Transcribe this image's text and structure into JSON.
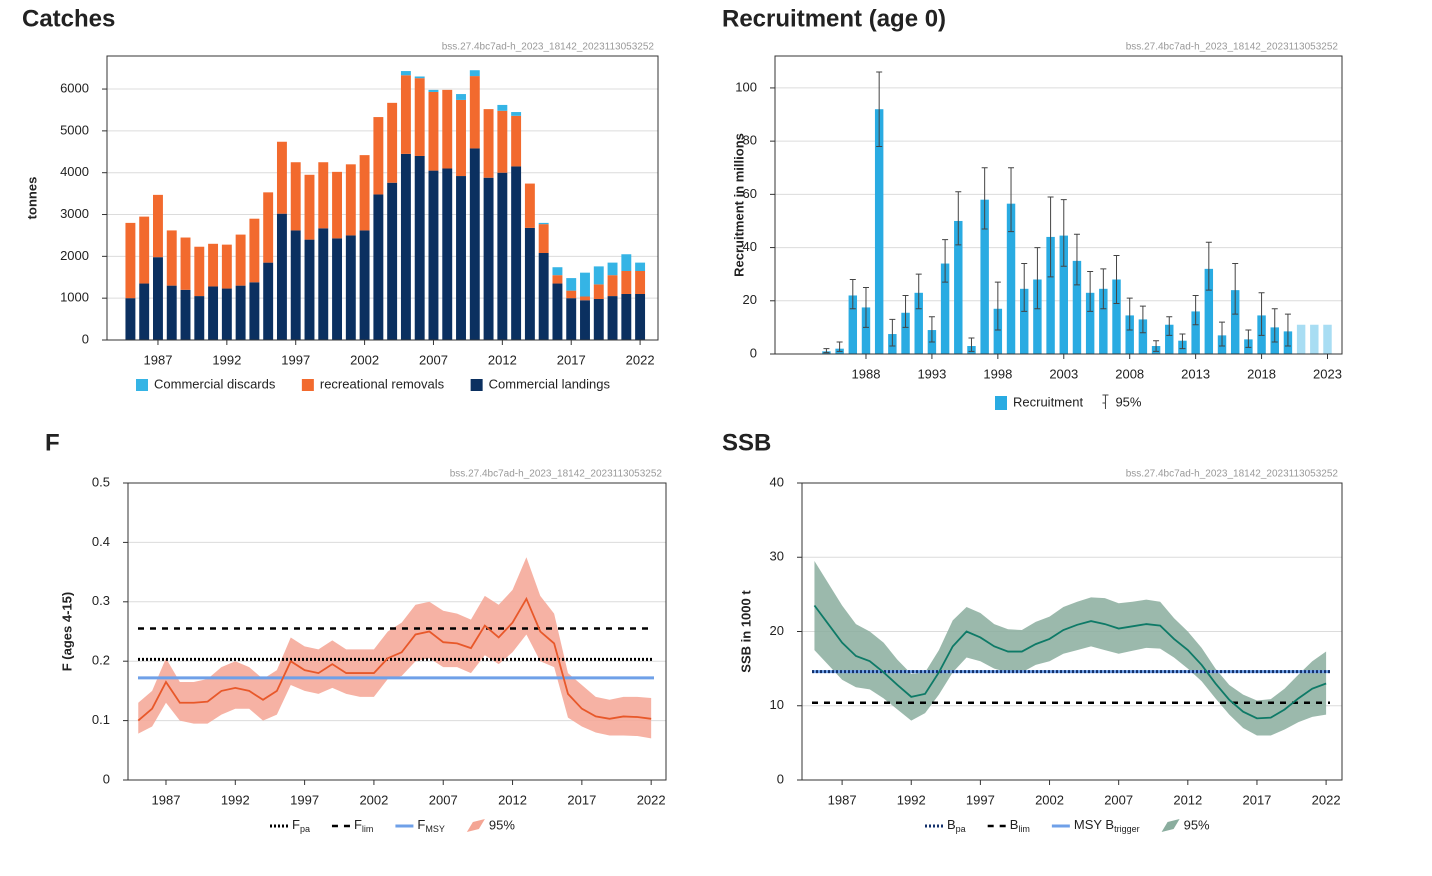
{
  "chart_data": [
    {
      "type": "stacked_bar",
      "title": "Catches",
      "title_color": "#0b3060",
      "source": "bss.27.4bc7ad-h_2023_18142_2023113053252",
      "ylabel": "tonnes",
      "x": [
        1985,
        1986,
        1987,
        1988,
        1989,
        1990,
        1991,
        1992,
        1993,
        1994,
        1995,
        1996,
        1997,
        1998,
        1999,
        2000,
        2001,
        2002,
        2003,
        2004,
        2005,
        2006,
        2007,
        2008,
        2009,
        2010,
        2011,
        2012,
        2013,
        2014,
        2015,
        2016,
        2017,
        2018,
        2019,
        2020,
        2021,
        2022
      ],
      "series": [
        {
          "name": "Commercial discards",
          "color": "#35b4e5",
          "values": [
            0,
            0,
            0,
            0,
            0,
            0,
            0,
            0,
            0,
            0,
            0,
            0,
            0,
            0,
            0,
            0,
            0,
            0,
            0,
            0,
            100,
            40,
            50,
            0,
            140,
            140,
            0,
            140,
            90,
            0,
            30,
            190,
            300,
            570,
            430,
            300,
            400,
            200
          ]
        },
        {
          "name": "recreational removals",
          "color": "#f26a2e",
          "values": [
            1800,
            1600,
            1490,
            1320,
            1250,
            1180,
            1020,
            1050,
            1220,
            1520,
            1680,
            1720,
            1630,
            1550,
            1580,
            1590,
            1700,
            1800,
            1850,
            1910,
            1880,
            1860,
            1880,
            1880,
            1820,
            1730,
            1640,
            1480,
            1210,
            1060,
            690,
            200,
            180,
            90,
            350,
            500,
            550,
            550
          ]
        },
        {
          "name": "Commercial landings",
          "color": "#0b3060",
          "values": [
            1000,
            1350,
            1980,
            1300,
            1200,
            1050,
            1280,
            1230,
            1300,
            1380,
            1850,
            3020,
            2620,
            2400,
            2670,
            2430,
            2500,
            2620,
            3480,
            3760,
            4450,
            4400,
            4050,
            4100,
            3920,
            4580,
            3880,
            4000,
            4150,
            2680,
            2080,
            1350,
            1000,
            950,
            980,
            1050,
            1100,
            1100
          ]
        }
      ],
      "xlim": [
        1983.3,
        2023.3
      ],
      "xticks": [
        1987,
        1992,
        1997,
        2002,
        2007,
        2012,
        2017,
        2022
      ],
      "ylim": [
        0,
        6790
      ],
      "yticks": [
        0,
        1000,
        2000,
        3000,
        4000,
        5000,
        6000
      ],
      "grid": true
    },
    {
      "type": "bar",
      "title": "Recruitment (age 0)",
      "title_color": "#29abe2",
      "source": "bss.27.4bc7ad-h_2023_18142_2023113053252",
      "ylabel": "Recruitment in millions",
      "x": [
        1985,
        1986,
        1987,
        1988,
        1989,
        1990,
        1991,
        1992,
        1993,
        1994,
        1995,
        1996,
        1997,
        1998,
        1999,
        2000,
        2001,
        2002,
        2003,
        2004,
        2005,
        2006,
        2007,
        2008,
        2009,
        2010,
        2011,
        2012,
        2013,
        2014,
        2015,
        2016,
        2017,
        2018,
        2019,
        2020,
        2021,
        2022,
        2023
      ],
      "series": [
        {
          "name": "Recruitment",
          "color": "#29abe2",
          "values": [
            1,
            2,
            22,
            17.5,
            92,
            7.5,
            15.5,
            23,
            9,
            34,
            50,
            3,
            58,
            17,
            56.5,
            24.5,
            28,
            44,
            44.5,
            35,
            23,
            24.5,
            28,
            14.5,
            13,
            3,
            11,
            5,
            16,
            32,
            7,
            24,
            5.5,
            14.5,
            10,
            8.5,
            11,
            11,
            11
          ],
          "colors": [
            "#29abe2",
            "#29abe2",
            "#29abe2",
            "#29abe2",
            "#29abe2",
            "#29abe2",
            "#29abe2",
            "#29abe2",
            "#29abe2",
            "#29abe2",
            "#29abe2",
            "#29abe2",
            "#29abe2",
            "#29abe2",
            "#29abe2",
            "#29abe2",
            "#29abe2",
            "#29abe2",
            "#29abe2",
            "#29abe2",
            "#29abe2",
            "#29abe2",
            "#29abe2",
            "#29abe2",
            "#29abe2",
            "#29abe2",
            "#29abe2",
            "#29abe2",
            "#29abe2",
            "#29abe2",
            "#29abe2",
            "#29abe2",
            "#29abe2",
            "#29abe2",
            "#29abe2",
            "#29abe2",
            "#a8ddf3",
            "#a8ddf3",
            "#a8ddf3"
          ]
        }
      ],
      "errors": {
        "name": "95%",
        "color": "#444",
        "lower": [
          0.5,
          1,
          17,
          10,
          78,
          3,
          10,
          17,
          4.5,
          27,
          41,
          1,
          47,
          9,
          46,
          16,
          17,
          29,
          33,
          26,
          16,
          17,
          19,
          9,
          8,
          1,
          7,
          2,
          11,
          24,
          3,
          15,
          2.5,
          7,
          4.5,
          3,
          null,
          null,
          null
        ],
        "upper": [
          2,
          4.5,
          28,
          25,
          106,
          13,
          22,
          30,
          14,
          43,
          61,
          6,
          70,
          27,
          70,
          34,
          40,
          59,
          58,
          45,
          31,
          32,
          37,
          21,
          18,
          5,
          14,
          7.5,
          22,
          42,
          12,
          34,
          9,
          23,
          17,
          15,
          null,
          null,
          null
        ]
      },
      "xlim": [
        1981.1,
        2024.1
      ],
      "xticks": [
        1988,
        1993,
        1998,
        2003,
        2008,
        2013,
        2018,
        2023
      ],
      "ylim": [
        0,
        112
      ],
      "yticks": [
        0,
        20,
        40,
        60,
        80,
        100
      ],
      "grid": true
    },
    {
      "type": "line",
      "title": "F",
      "title_color": "#e8612c",
      "source": "bss.27.4bc7ad-h_2023_18142_2023113053252",
      "ylabel": "F (ages 4-15)",
      "x": [
        1985,
        1986,
        1987,
        1988,
        1989,
        1990,
        1991,
        1992,
        1993,
        1994,
        1995,
        1996,
        1997,
        1998,
        1999,
        2000,
        2001,
        2002,
        2003,
        2004,
        2005,
        2006,
        2007,
        2008,
        2009,
        2010,
        2011,
        2012,
        2013,
        2014,
        2015,
        2016,
        2017,
        2018,
        2019,
        2020,
        2021,
        2022
      ],
      "series": [
        {
          "color": "#e8582a",
          "values": [
            0.1,
            0.12,
            0.165,
            0.13,
            0.13,
            0.132,
            0.15,
            0.155,
            0.15,
            0.135,
            0.15,
            0.2,
            0.185,
            0.18,
            0.195,
            0.18,
            0.18,
            0.18,
            0.205,
            0.215,
            0.245,
            0.25,
            0.232,
            0.23,
            0.222,
            0.26,
            0.24,
            0.265,
            0.305,
            0.25,
            0.23,
            0.145,
            0.12,
            0.107,
            0.103,
            0.107,
            0.106,
            0.103
          ]
        }
      ],
      "band": {
        "name": "95%",
        "color": "#f4a594",
        "lower": [
          0.078,
          0.09,
          0.13,
          0.1,
          0.095,
          0.095,
          0.11,
          0.12,
          0.12,
          0.1,
          0.11,
          0.16,
          0.15,
          0.145,
          0.155,
          0.145,
          0.14,
          0.14,
          0.17,
          0.175,
          0.2,
          0.205,
          0.19,
          0.19,
          0.18,
          0.21,
          0.195,
          0.215,
          0.245,
          0.2,
          0.19,
          0.105,
          0.09,
          0.08,
          0.075,
          0.075,
          0.074,
          0.07
        ],
        "upper": [
          0.13,
          0.15,
          0.205,
          0.165,
          0.165,
          0.17,
          0.19,
          0.2,
          0.19,
          0.17,
          0.185,
          0.24,
          0.225,
          0.22,
          0.235,
          0.22,
          0.22,
          0.22,
          0.25,
          0.265,
          0.295,
          0.3,
          0.285,
          0.28,
          0.27,
          0.31,
          0.295,
          0.32,
          0.375,
          0.31,
          0.28,
          0.18,
          0.16,
          0.14,
          0.135,
          0.14,
          0.14,
          0.138
        ]
      },
      "refs": [
        {
          "name": "F",
          "sub": "pa",
          "value": 0.203,
          "style": "dotted",
          "color": "#000000"
        },
        {
          "name": "F",
          "sub": "lim",
          "value": 0.255,
          "style": "dashed",
          "color": "#000000"
        },
        {
          "name": "F",
          "sub": "MSY",
          "value": 0.172,
          "style": "solid",
          "color": "#6fa0e8"
        }
      ],
      "xlim": [
        1984.26,
        2023.07
      ],
      "xticks": [
        1987,
        1992,
        1997,
        2002,
        2007,
        2012,
        2017,
        2022
      ],
      "ylim": [
        0,
        0.5
      ],
      "yticks": [
        0,
        0.1,
        0.2,
        0.3,
        0.4,
        0.5
      ],
      "grid": true
    },
    {
      "type": "line",
      "title": "SSB",
      "title_color": "#0e7a67",
      "source": "bss.27.4bc7ad-h_2023_18142_2023113053252",
      "ylabel": "SSB in 1000 t",
      "x": [
        1985,
        1986,
        1987,
        1988,
        1989,
        1990,
        1991,
        1992,
        1993,
        1994,
        1995,
        1996,
        1997,
        1998,
        1999,
        2000,
        2001,
        2002,
        2003,
        2004,
        2005,
        2006,
        2007,
        2008,
        2009,
        2010,
        2011,
        2012,
        2013,
        2014,
        2015,
        2016,
        2017,
        2018,
        2019,
        2020,
        2021,
        2022
      ],
      "series": [
        {
          "color": "#0e7a67",
          "values": [
            23.5,
            21,
            18.5,
            16.7,
            16,
            14.5,
            12.8,
            11.2,
            11.6,
            14.5,
            18,
            20,
            19.2,
            18,
            17.3,
            17.3,
            18.3,
            19,
            20.2,
            20.9,
            21.4,
            21,
            20.4,
            20.7,
            21,
            20.8,
            19,
            17.5,
            15.5,
            13,
            10.8,
            9.2,
            8.3,
            8.4,
            9.5,
            11,
            12.3,
            13
          ]
        }
      ],
      "band": {
        "name": "95%",
        "color": "#8aad9e",
        "lower": [
          17.5,
          15.5,
          13.5,
          12.5,
          12.2,
          11,
          9.5,
          8,
          9,
          11.5,
          14.5,
          16.5,
          16,
          15,
          14.5,
          14.5,
          15.5,
          16,
          17,
          17.5,
          18,
          17.5,
          17,
          17.4,
          17.8,
          17.7,
          16.5,
          15,
          13.3,
          11,
          8.8,
          7,
          6,
          6,
          6.8,
          7.8,
          8.5,
          8.8
        ],
        "upper": [
          29.5,
          26.5,
          23.5,
          21,
          20,
          18.5,
          16.2,
          14.3,
          14.5,
          17.5,
          21.5,
          23.3,
          22.5,
          21,
          20.3,
          20.2,
          21.3,
          22,
          23.3,
          24,
          24.6,
          24.5,
          23.8,
          24,
          24.3,
          24,
          21.8,
          20,
          17.8,
          15,
          12.8,
          11.5,
          10.7,
          10.9,
          12.3,
          14.2,
          16,
          17.3
        ]
      },
      "refs": [
        {
          "name": "B",
          "sub": "pa",
          "value": 14.6,
          "style": "dotted",
          "color": "#13306b"
        },
        {
          "name": "B",
          "sub": "lim",
          "value": 10.4,
          "style": "dashed",
          "color": "#000000"
        },
        {
          "name": "MSY B",
          "sub": "trigger",
          "value": 14.6,
          "style": "solid",
          "color": "#6fa0e8"
        }
      ],
      "xlim": [
        1984.1,
        2023.15
      ],
      "xticks": [
        1987,
        1992,
        1997,
        2002,
        2007,
        2012,
        2017,
        2022
      ],
      "ylim": [
        0,
        40
      ],
      "yticks": [
        0,
        10,
        20,
        30,
        40
      ],
      "grid": true
    }
  ]
}
